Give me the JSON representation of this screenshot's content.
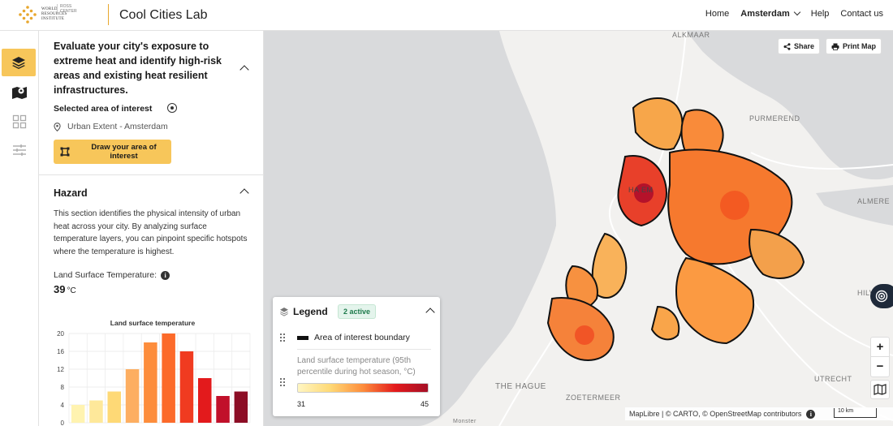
{
  "header": {
    "logo_text": "WORLD RESOURCES INSTITUTE",
    "logo_sub": "ROSS CENTER",
    "app_title": "Cool Cities Lab",
    "nav": {
      "home": "Home",
      "city": "Amsterdam",
      "help": "Help",
      "contact": "Contact us"
    }
  },
  "rail": {
    "icons": [
      "layers-icon",
      "map-icon",
      "grid-icon",
      "sliders-icon"
    ],
    "active": "layers-icon"
  },
  "panel": {
    "intro": "Evaluate your city's exposure to extreme heat and identify high-risk areas and existing heat resilient infrastructures.",
    "selected_label": "Selected area of interest",
    "location": "Urban Extent - Amsterdam",
    "draw_button": "Draw your area of interest",
    "hazard": {
      "title": "Hazard",
      "description": "This section identifies the physical intensity of urban heat across your city. By analyzing surface temperature layers, you can pinpoint specific hotspots where the temperature is highest.",
      "lst_label": "Land Surface Temperature:",
      "lst_value": "39",
      "lst_unit": "°C"
    }
  },
  "chart_data": {
    "type": "bar",
    "title": "Land surface temperature",
    "y_ticks": [
      "20",
      "16",
      "12",
      "8",
      "4",
      "0"
    ],
    "ylim": [
      0,
      20
    ],
    "values": [
      4,
      5,
      7,
      12,
      18,
      20,
      16,
      10,
      6,
      7
    ],
    "colors": [
      "#fff3b0",
      "#fee89a",
      "#fed976",
      "#fdae61",
      "#fd8d3c",
      "#fc6a2a",
      "#f03b20",
      "#e31a1c",
      "#c1102a",
      "#8c0d25"
    ]
  },
  "map": {
    "labels": {
      "alkmaar": "ALKMAAR",
      "purmerend": "PURMEREND",
      "almere": "ALMERE",
      "hilversum": "HILVERSU",
      "the_hague": "THE HAGUE",
      "zoetermeer": "ZOETERMEER",
      "utrecht": "UTRECHT",
      "monster": "Monster",
      "haarlem": "HA   EM"
    },
    "share": "Share",
    "print": "Print Map",
    "attribution": "MapLibre | © CARTO, © OpenStreetMap contributors",
    "scale": "10 km"
  },
  "legend": {
    "title": "Legend",
    "badge": "2 active",
    "boundary": "Area of interest boundary",
    "lst": "Land surface temperature (95th percentile during hot season, °C)",
    "min": "31",
    "max": "45"
  }
}
